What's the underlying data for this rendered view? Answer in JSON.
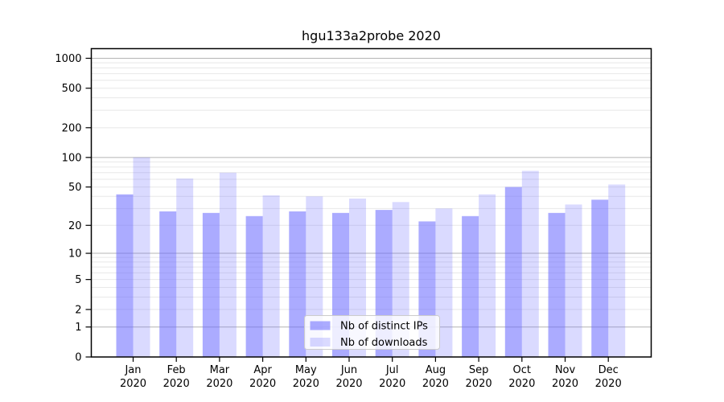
{
  "title": "hgu133a2probe 2020",
  "chart_data": {
    "type": "bar",
    "title": "hgu133a2probe 2020",
    "categories": [
      "Jan",
      "Feb",
      "Mar",
      "Apr",
      "May",
      "Jun",
      "Jul",
      "Aug",
      "Sep",
      "Oct",
      "Nov",
      "Dec"
    ],
    "category_year": "2020",
    "series": [
      {
        "name": "Nb of distinct IPs",
        "color": "rgba(102,102,255,0.55)",
        "values": [
          42,
          28,
          27,
          25,
          28,
          27,
          29,
          22,
          25,
          50,
          27,
          37
        ]
      },
      {
        "name": "Nb of downloads",
        "color": "rgba(102,102,255,0.24)",
        "values": [
          100,
          61,
          70,
          41,
          40,
          38,
          35,
          30,
          42,
          73,
          33,
          53
        ]
      }
    ],
    "xlabel": "",
    "ylabel": "",
    "yscale": "log1p",
    "ylim": [
      0,
      1250
    ],
    "yticks": [
      0,
      1,
      2,
      5,
      10,
      20,
      50,
      100,
      200,
      500,
      1000
    ],
    "grid": "horizontal major at powers of ten, minor at 2-9 per decade",
    "legend_position": "inside-bottom-center"
  },
  "colors": {
    "bar_ips": "rgba(102,102,255,0.55)",
    "bar_downloads": "rgba(102,102,255,0.24)",
    "grid_major": "#b4b4b4",
    "grid_minor": "#e8e8e8",
    "frame": "#000000",
    "legend_border": "#cccccc",
    "legend_background": "rgba(255,255,255,0.8)"
  }
}
